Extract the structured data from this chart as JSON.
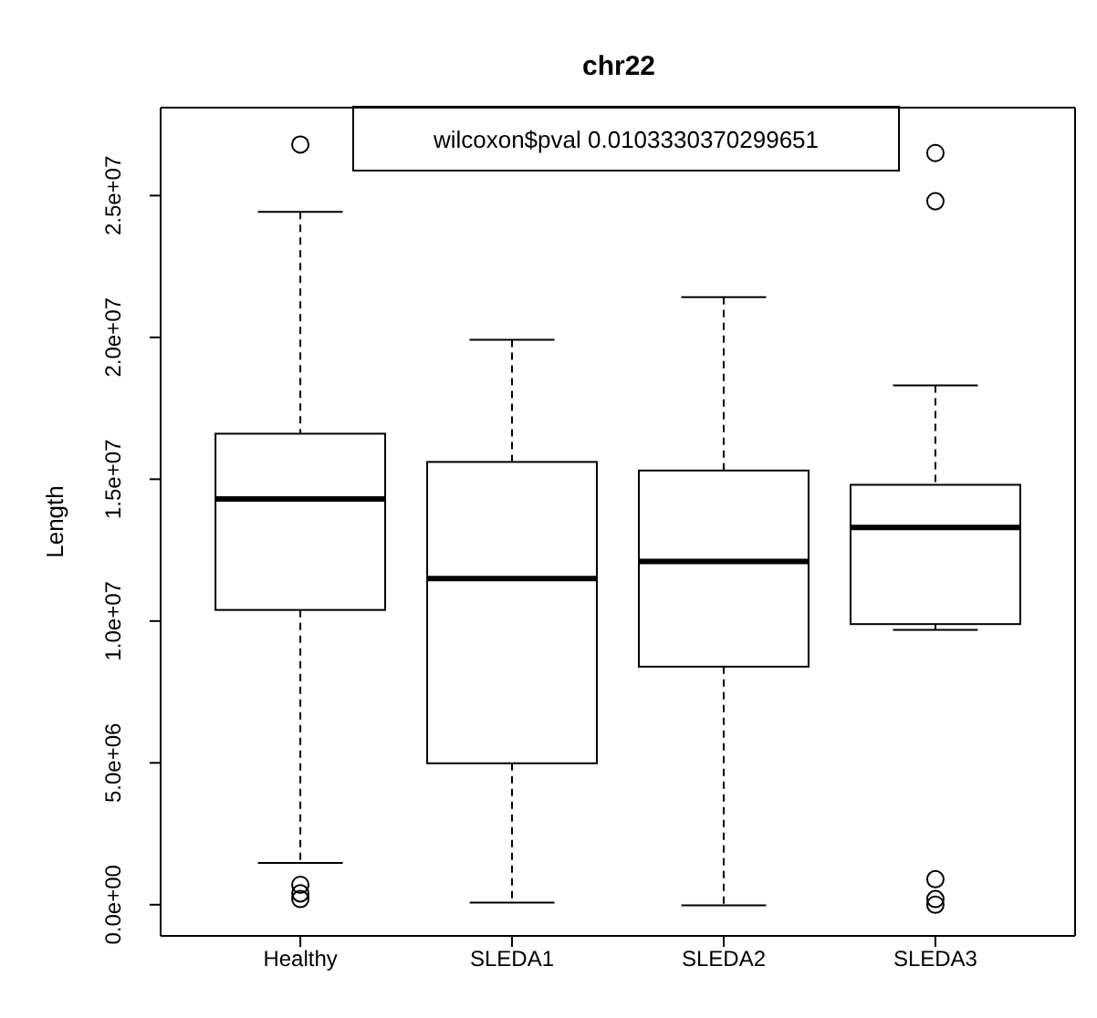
{
  "chart_data": {
    "type": "box",
    "title": "chr22",
    "ylabel": "Length",
    "categories": [
      "Healthy",
      "SLEDA1",
      "SLEDA2",
      "SLEDA3"
    ],
    "boxes": [
      {
        "low": 1500000,
        "q1": 10400000,
        "median": 14300000,
        "q3": 16600000,
        "high": 24400000,
        "outliers": [
          26800000,
          700000,
          400000,
          200000
        ]
      },
      {
        "low": 100000,
        "q1": 5000000,
        "median": 11500000,
        "q3": 15600000,
        "high": 19900000
      },
      {
        "low": 0,
        "q1": 8400000,
        "median": 12100000,
        "q3": 15300000,
        "high": 21400000
      },
      {
        "low": 9700000,
        "q1": 9900000,
        "median": 13300000,
        "q3": 14800000,
        "high": 18300000,
        "outliers": [
          26500000,
          24800000,
          900000,
          200000,
          0
        ]
      }
    ],
    "ylim": [
      -1100000,
      28100000
    ],
    "yticks": [
      {
        "value": 0,
        "label": "0.0e+00"
      },
      {
        "value": 5000000,
        "label": "5.0e+06"
      },
      {
        "value": 10000000,
        "label": "1.0e+07"
      },
      {
        "value": 15000000,
        "label": "1.5e+07"
      },
      {
        "value": 20000000,
        "label": "2.0e+07"
      },
      {
        "value": 25000000,
        "label": "2.5e+07"
      }
    ],
    "annotations": [
      "wilcoxon$pval 0.0103330370299651"
    ]
  }
}
